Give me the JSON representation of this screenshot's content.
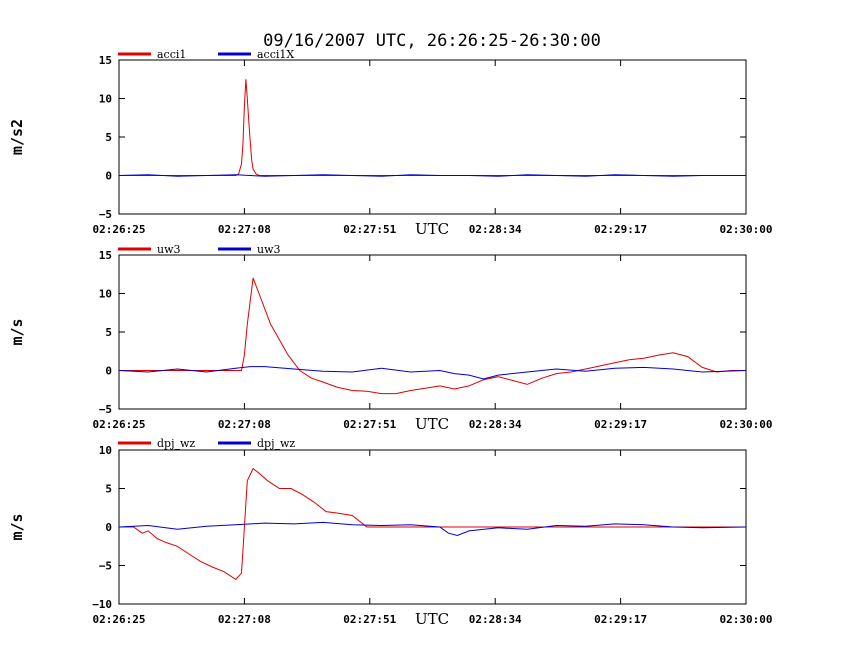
{
  "chart_data": {
    "title": "09/16/2007  UTC, 26:26:25-26:30:00",
    "x_unit_label": "UTC",
    "x_tick_labels": [
      "02:26:25",
      "02:27:08",
      "02:27:51",
      "02:28:34",
      "02:29:17",
      "02:30:00"
    ],
    "colors": {
      "red_series": "#e00000",
      "blue_series": "#0000d0",
      "axes": "#000000"
    },
    "panels": [
      {
        "type": "line",
        "ylabel": "m/s2",
        "ylim": [
          -5,
          15
        ],
        "yticks": [
          -5,
          0,
          5,
          10,
          15
        ],
        "ytick_labels": [
          "−5",
          "0",
          "5",
          "10",
          "15"
        ],
        "x_range_seconds": [
          0,
          215
        ],
        "series": [
          {
            "name": "acci1",
            "color": "#e00000",
            "x": [
              0,
              40,
              41,
              42,
              42.5,
              43,
              43.5,
              44,
              44.5,
              45,
              45.5,
              46,
              47,
              48,
              215
            ],
            "y": [
              0,
              0,
              0.2,
              1.5,
              4,
              9,
              12.5,
              10,
              7,
              4.5,
              2,
              0.8,
              0.2,
              0,
              0
            ]
          },
          {
            "name": "acci1X",
            "color": "#0000d0",
            "x": [
              0,
              10,
              20,
              30,
              40,
              50,
              60,
              70,
              80,
              90,
              100,
              110,
              120,
              130,
              140,
              150,
              160,
              170,
              180,
              190,
              200,
              215
            ],
            "y": [
              0,
              0.1,
              -0.1,
              0,
              0.1,
              -0.1,
              0,
              0.1,
              0,
              -0.1,
              0.1,
              0,
              0,
              -0.1,
              0.1,
              0,
              -0.1,
              0.1,
              0,
              -0.1,
              0,
              0
            ]
          }
        ]
      },
      {
        "type": "line",
        "ylabel": "m/s",
        "ylim": [
          -5,
          15
        ],
        "yticks": [
          -5,
          0,
          5,
          10,
          15
        ],
        "ytick_labels": [
          "−5",
          "0",
          "5",
          "10",
          "15"
        ],
        "x_range_seconds": [
          0,
          215
        ],
        "series": [
          {
            "name": "uw3",
            "color": "#e00000",
            "x": [
              0,
              42,
              43,
              44,
              46,
              48,
              50,
              52,
              55,
              58,
              62,
              66,
              70,
              75,
              80,
              85,
              90,
              95,
              100,
              105,
              110,
              115,
              120,
              125,
              130,
              135,
              140,
              145,
              150,
              155,
              160,
              165,
              170,
              175,
              180,
              185,
              190,
              195,
              200,
              205,
              210,
              215
            ],
            "y": [
              0,
              0,
              2,
              6,
              12,
              10,
              8,
              6,
              4,
              2,
              0,
              -1,
              -1.5,
              -2.2,
              -2.6,
              -2.7,
              -3,
              -3,
              -2.6,
              -2.3,
              -2,
              -2.4,
              -2,
              -1.2,
              -0.8,
              -1.3,
              -1.8,
              -1,
              -0.4,
              -0.2,
              0.2,
              0.6,
              1,
              1.4,
              1.6,
              2,
              2.3,
              1.8,
              0.4,
              -0.2,
              0,
              0
            ]
          },
          {
            "name": "uw3",
            "color": "#0000d0",
            "x": [
              0,
              10,
              20,
              30,
              40,
              45,
              50,
              60,
              70,
              80,
              90,
              100,
              110,
              115,
              120,
              125,
              130,
              140,
              150,
              160,
              170,
              180,
              190,
              200,
              215
            ],
            "y": [
              0,
              -0.2,
              0.2,
              -0.2,
              0.3,
              0.5,
              0.5,
              0.2,
              -0.1,
              -0.2,
              0.3,
              -0.2,
              0,
              -0.4,
              -0.6,
              -1.1,
              -0.6,
              -0.2,
              0.2,
              -0.1,
              0.3,
              0.4,
              0.2,
              -0.2,
              0
            ]
          }
        ]
      },
      {
        "type": "line",
        "ylabel": "m/s",
        "ylim": [
          -10,
          10
        ],
        "yticks": [
          -10,
          -5,
          0,
          5,
          10
        ],
        "ytick_labels": [
          "−10",
          "−5",
          "0",
          "5",
          "10"
        ],
        "x_range_seconds": [
          0,
          215
        ],
        "series": [
          {
            "name": "dpj_wz",
            "color": "#e00000",
            "x": [
              0,
              5,
              8,
              10,
              13,
              16,
              20,
              24,
              28,
              32,
              36,
              40,
              42,
              43,
              44,
              46,
              48,
              51,
              55,
              59,
              63,
              67,
              71,
              75,
              80,
              85,
              90,
              95,
              100,
              215
            ],
            "y": [
              0,
              0,
              -0.8,
              -0.5,
              -1.5,
              -2,
              -2.5,
              -3.5,
              -4.5,
              -5.2,
              -5.8,
              -6.8,
              -6,
              0,
              6,
              7.6,
              7,
              6,
              5,
              5,
              4.2,
              3.2,
              2,
              1.8,
              1.5,
              0,
              0,
              0,
              0,
              0
            ]
          },
          {
            "name": "dpj_wz",
            "color": "#0000d0",
            "x": [
              0,
              10,
              20,
              30,
              40,
              50,
              60,
              70,
              80,
              90,
              100,
              110,
              113,
              116,
              120,
              130,
              140,
              150,
              160,
              170,
              180,
              190,
              200,
              215
            ],
            "y": [
              0,
              0.2,
              -0.3,
              0.1,
              0.3,
              0.5,
              0.4,
              0.6,
              0.3,
              0.2,
              0.3,
              0,
              -0.8,
              -1.1,
              -0.5,
              -0.1,
              -0.3,
              0.2,
              0.1,
              0.4,
              0.3,
              0,
              -0.1,
              0
            ]
          }
        ]
      }
    ]
  }
}
